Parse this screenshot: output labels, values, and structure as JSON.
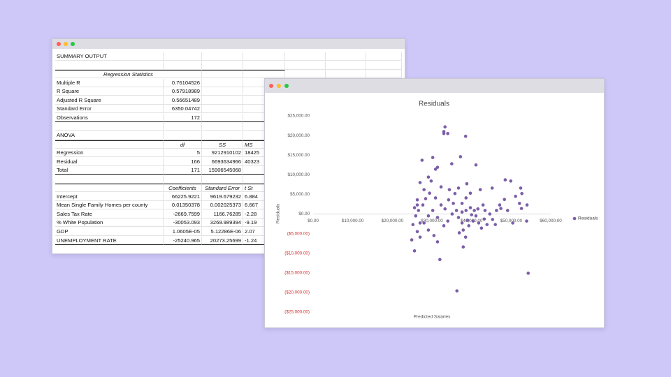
{
  "spreadsheet": {
    "rows": [
      [
        "SUMMARY OUTPUT",
        null,
        null,
        null
      ],
      null,
      [
        "Regression Statistics",
        null,
        null,
        null
      ],
      [
        "Multiple R",
        "0.76104526",
        null,
        null
      ],
      [
        "R Square",
        "0.57918989",
        null,
        null
      ],
      [
        "Adjusted R Square",
        "0.56651489",
        null,
        null
      ],
      [
        "Standard Error",
        "6350.04742",
        null,
        null
      ],
      [
        "Observations",
        "172",
        null,
        null
      ],
      null,
      [
        "ANOVA",
        null,
        null,
        null
      ],
      [
        null,
        "df",
        "SS",
        "MS"
      ],
      [
        "Regression",
        "5",
        "9212910102",
        "18425"
      ],
      [
        "Residual",
        "166",
        "6693634966",
        "40323"
      ],
      [
        "Total",
        "171",
        "15906545068",
        null
      ],
      null,
      [
        null,
        "Coefficients",
        "Standard Error",
        "t St"
      ],
      [
        "Intercept",
        "66225.9221",
        "9619.679232",
        "6.884"
      ],
      [
        "Mean Single Family Homes per county",
        "0.01350378",
        "0.002025373",
        "6.667"
      ],
      [
        "Sales Tax Rate",
        "-2669.7599",
        "1166.76285",
        "-2.28"
      ],
      [
        "% White Population",
        "-30053.093",
        "3269.989394",
        "-9.19"
      ],
      [
        "GDP",
        "1.0605E-05",
        "5.12286E-06",
        "2.07"
      ],
      [
        "UNEMPLOYMENT RATE",
        "-25240.965",
        "20273.25699",
        "-1.24"
      ]
    ]
  },
  "chart_data": {
    "type": "scatter",
    "title": "Residuals",
    "x_label": "Predicted Salaries",
    "y_label": "Residuals",
    "xlim": [
      0,
      60000
    ],
    "ylim": [
      -25000,
      25000
    ],
    "xticks": [
      {
        "value": 0,
        "label": "$0.00"
      },
      {
        "value": 10000,
        "label": "$10,000.00"
      },
      {
        "value": 20000,
        "label": "$20,000.00"
      },
      {
        "value": 30000,
        "label": "$30,000.00"
      },
      {
        "value": 40000,
        "label": "$40,000.00"
      },
      {
        "value": 50000,
        "label": "$50,000.00"
      },
      {
        "value": 60000,
        "label": "$60,000.00"
      }
    ],
    "yticks": [
      {
        "value": 25000,
        "label": "$25,000.00"
      },
      {
        "value": 20000,
        "label": "$20,000.00"
      },
      {
        "value": 15000,
        "label": "$15,000.00"
      },
      {
        "value": 10000,
        "label": "$10,000.00"
      },
      {
        "value": 5000,
        "label": "$5,000.00"
      },
      {
        "value": 0,
        "label": "$0.00"
      },
      {
        "value": -5000,
        "label": "($5,000.00)"
      },
      {
        "value": -10000,
        "label": "($10,000.00)"
      },
      {
        "value": -15000,
        "label": "($15,000.00)"
      },
      {
        "value": -20000,
        "label": "($20,000.00)"
      },
      {
        "value": -25000,
        "label": "($25,000.00)"
      }
    ],
    "negative_tick_color": "#d0312d",
    "grid": false,
    "legend": "right",
    "series": [
      {
        "name": "Residuals",
        "color": "#7b5ea7",
        "x": [
          33300,
          33000,
          34000,
          33000,
          38500,
          27500,
          30200,
          37200,
          30900,
          31400,
          35000,
          29100,
          29800,
          41100,
          32300,
          34400,
          27000,
          28000,
          29400,
          36700,
          38800,
          39700,
          42200,
          45200,
          48500,
          49900,
          52400,
          52700,
          51100,
          48300,
          47100,
          47400,
          52100,
          52600,
          54000,
          53900,
          26300,
          26600,
          25900,
          25200,
          26300,
          27000,
          25600,
          24900,
          28000,
          29100,
          30500,
          31400,
          32000,
          27700,
          30200,
          32300,
          33300,
          34200,
          35400,
          36200,
          36700,
          37600,
          37900,
          38500,
          37900,
          39300,
          40400,
          41100,
          41800,
          42500,
          43200,
          43900,
          44600,
          45300,
          46000,
          41600,
          42900,
          39700,
          38600,
          37600,
          35100,
          34000,
          33000,
          31400,
          29100,
          27000,
          36300,
          54300,
          38600,
          40000,
          40700,
          37600,
          35800,
          30900,
          28400,
          26300,
          25600,
          46300,
          49100,
          50400,
          43400,
          36900,
          39000
        ],
        "values": [
          22200,
          21000,
          20500,
          20500,
          19800,
          13700,
          14400,
          14600,
          11400,
          11900,
          12800,
          9400,
          8400,
          12500,
          6900,
          6200,
          8000,
          6200,
          5300,
          6600,
          7700,
          5300,
          6200,
          6600,
          8700,
          8400,
          6600,
          5200,
          4500,
          3700,
          2300,
          1400,
          2700,
          1400,
          2300,
          -1800,
          2300,
          900,
          -500,
          -2700,
          -4500,
          -5900,
          -9400,
          -6600,
          -2300,
          -4100,
          -5500,
          -7100,
          -11600,
          2300,
          900,
          2300,
          1300,
          3600,
          2700,
          900,
          -900,
          -2300,
          -4100,
          -5900,
          -8400,
          -3000,
          -1800,
          -500,
          -2300,
          -3600,
          -1300,
          -2700,
          0,
          -1400,
          -2700,
          1300,
          2300,
          1600,
          4100,
          2700,
          0,
          -1800,
          -3000,
          -900,
          -500,
          -2300,
          -19600,
          -15100,
          900,
          -200,
          900,
          500,
          5200,
          4100,
          3900,
          3600,
          1600,
          900,
          900,
          -2300,
          900,
          -4800,
          -1600
        ]
      }
    ]
  }
}
